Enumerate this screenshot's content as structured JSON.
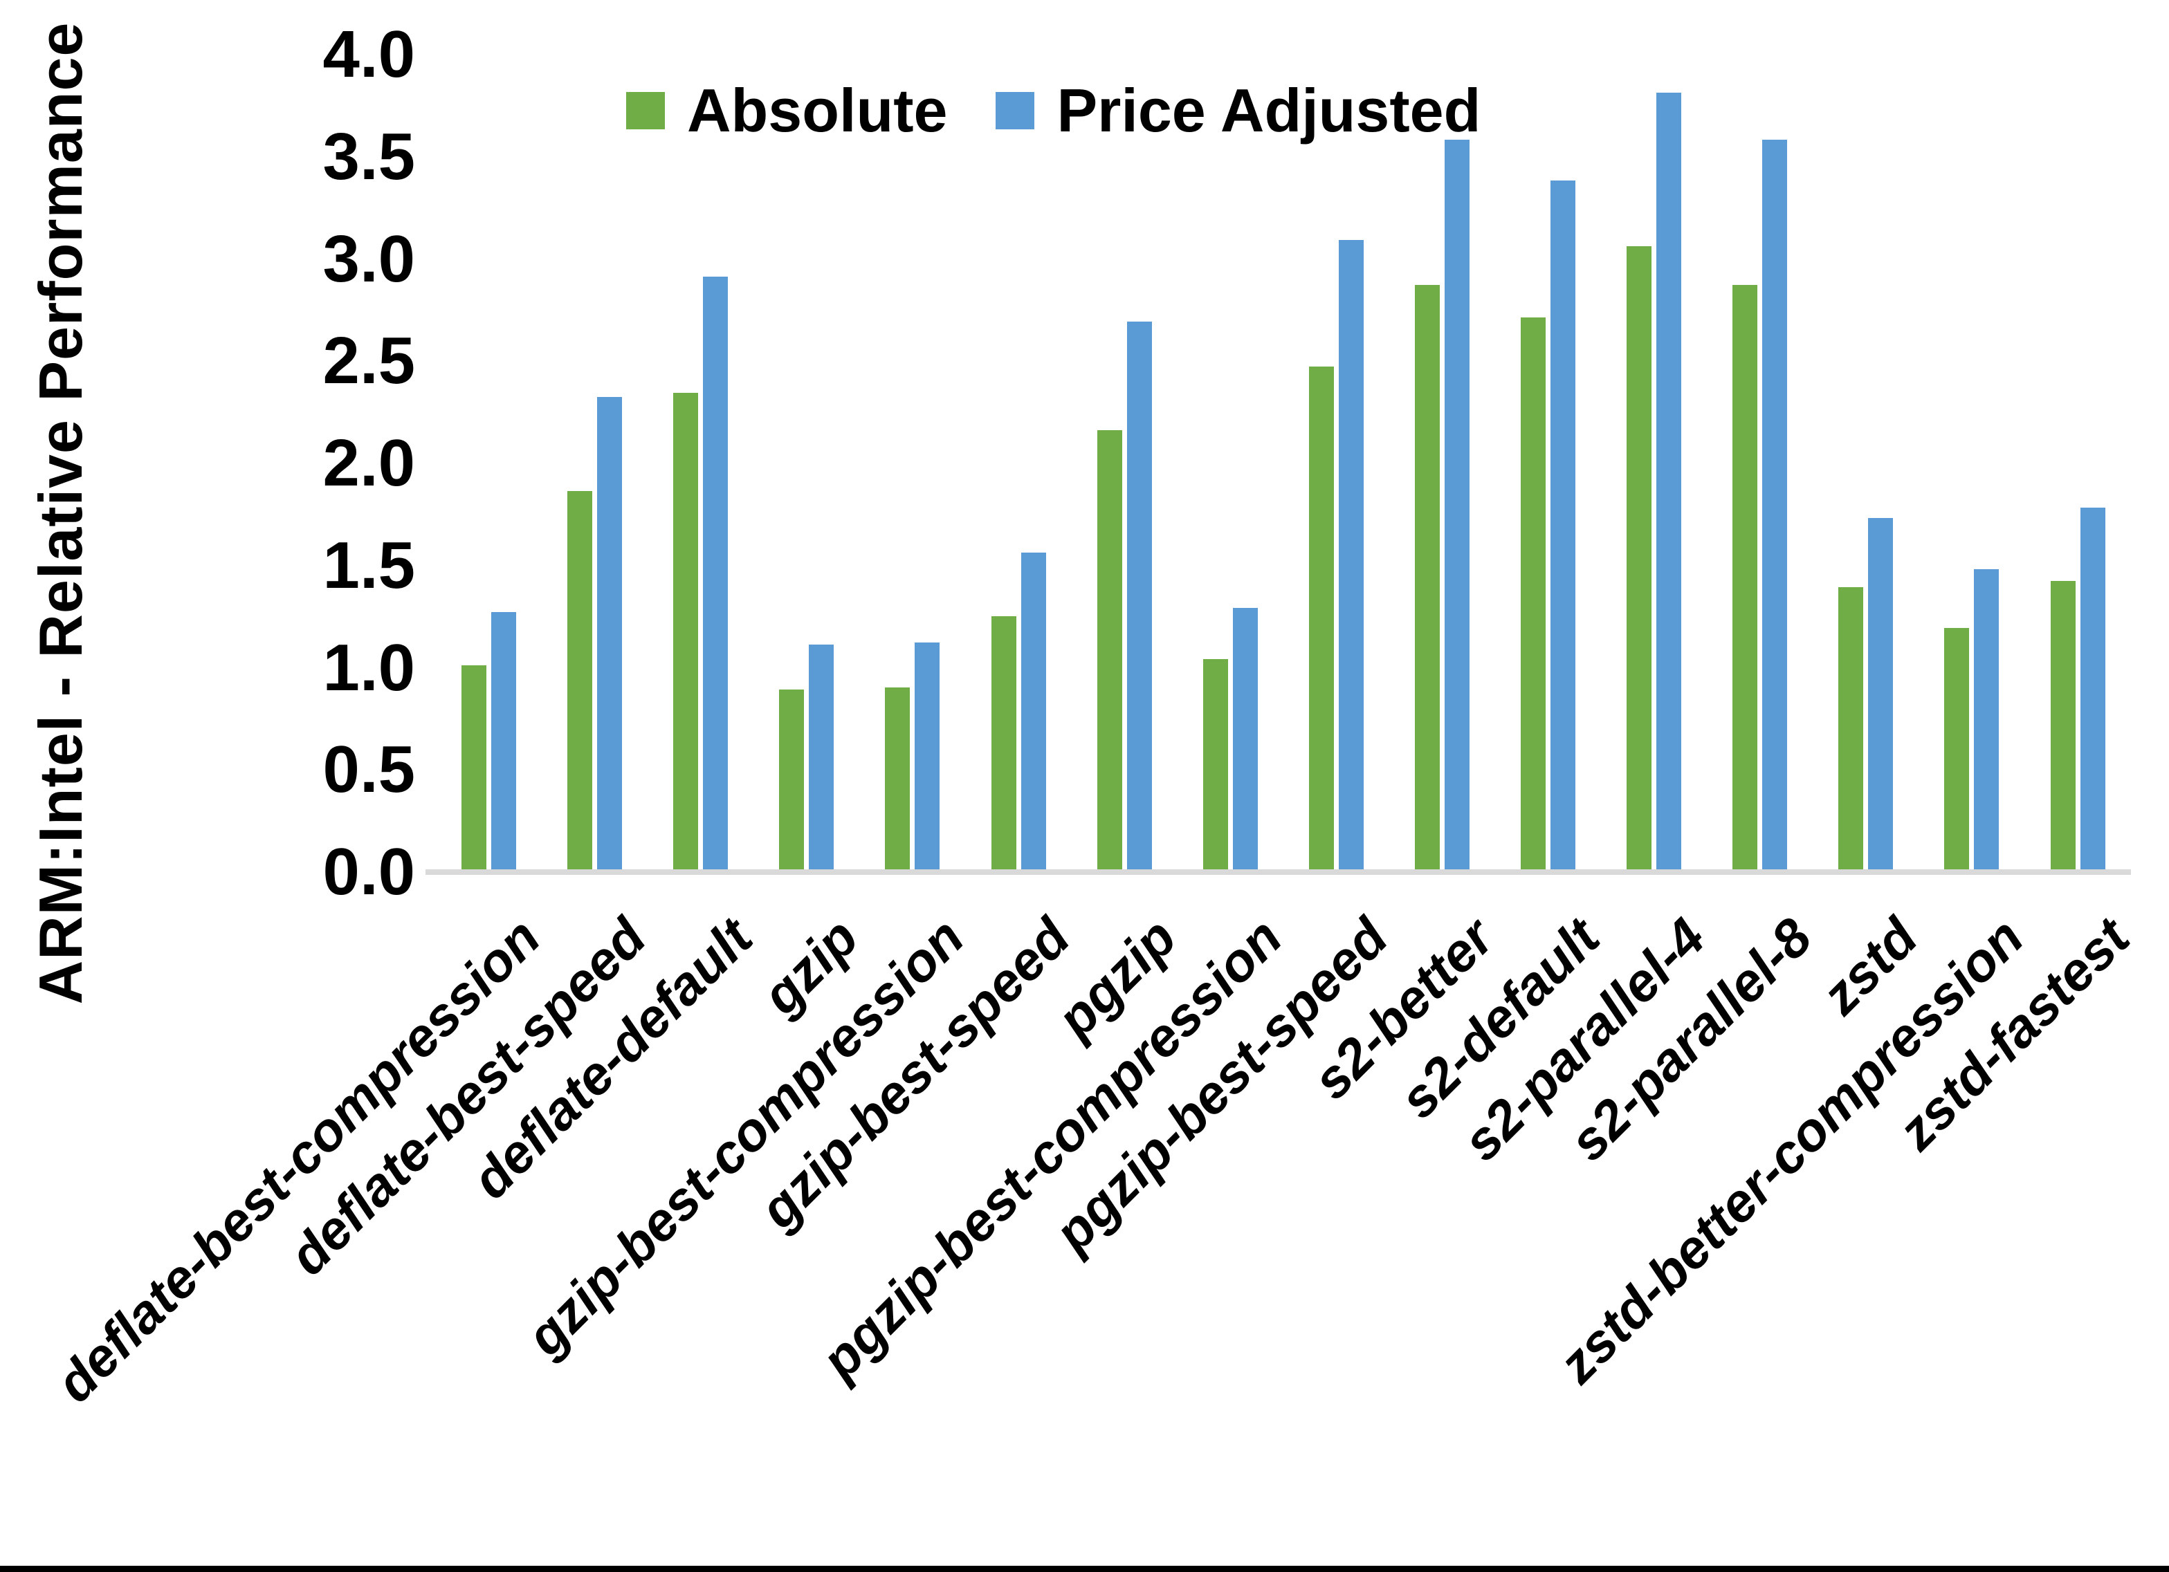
{
  "chart_data": {
    "type": "bar",
    "title": "",
    "ylabel": "ARM:Intel - Relative Performance",
    "xlabel": "",
    "ylim": [
      0.0,
      4.0
    ],
    "ytick_step": 0.5,
    "ytick_labels": [
      "4.0",
      "3.5",
      "3.0",
      "2.5",
      "2.0",
      "1.5",
      "1.0",
      "0.5",
      "0.0"
    ],
    "grid": "off",
    "legend_position": "top",
    "categories": [
      "deflate-best-compression",
      "deflate-best-speed",
      "deflate-default",
      "gzip",
      "gzip-best-compression",
      "gzip-best-speed",
      "pgzip",
      "pgzip-best-compression",
      "pgzip-best-speed",
      "s2-better",
      "s2-default",
      "s2-parallel-4",
      "s2-parallel-8",
      "zstd",
      "zstd-better-compression",
      "zstd-fastest"
    ],
    "series": [
      {
        "name": "Absolute",
        "color": "#70AD47",
        "values": [
          1.0,
          1.85,
          2.33,
          0.88,
          0.89,
          1.24,
          2.15,
          1.03,
          2.46,
          2.86,
          2.7,
          3.05,
          2.86,
          1.38,
          1.18,
          1.41
        ]
      },
      {
        "name": "Price Adjusted",
        "color": "#5B9BD5",
        "values": [
          1.26,
          2.31,
          2.9,
          1.1,
          1.11,
          1.55,
          2.68,
          1.28,
          3.08,
          3.57,
          3.37,
          3.8,
          3.57,
          1.72,
          1.47,
          1.77
        ]
      }
    ],
    "colors": {
      "axis_line": "#d9d9d9",
      "text": "#000000",
      "bottom_border": "#000000"
    }
  }
}
